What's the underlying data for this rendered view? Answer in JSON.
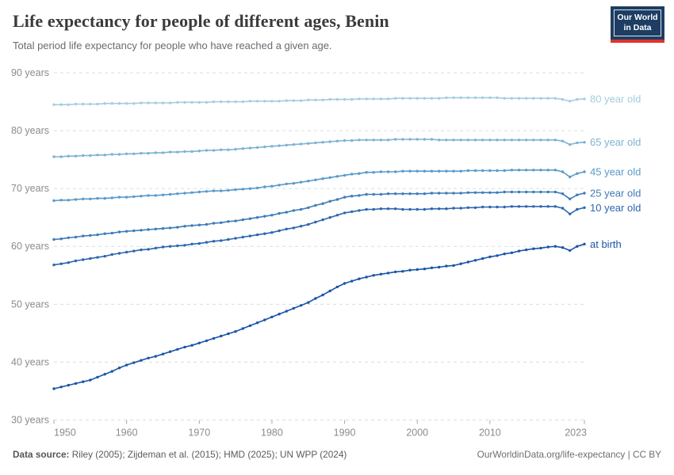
{
  "header": {
    "title": "Life expectancy for people of different ages, Benin",
    "subtitle": "Total period life expectancy for people who have reached a given age.",
    "logo": {
      "line1": "Our World",
      "line2": "in Data",
      "bg": "#1d3d63",
      "stripe": "#e0332e"
    }
  },
  "footer": {
    "datasource_label": "Data source:",
    "datasource_text": " Riley (2005); Zijdeman et al. (2015); HMD (2025); UN WPP (2024)",
    "license_text": "OurWorldinData.org/life-expectancy | CC BY"
  },
  "colors": {
    "grid": "#dcdcdc",
    "tick": "#a8a8a8",
    "axis_text": "#8b8b8b",
    "title_text": "#3b3b3b",
    "subtitle_text": "#666b70"
  },
  "chart_data": {
    "type": "line",
    "title": "Life expectancy for people of different ages, Benin",
    "subtitle": "Total period life expectancy for people who have reached a given age.",
    "xlim": [
      1950,
      2023
    ],
    "ylim": [
      30,
      90
    ],
    "yticks": [
      30,
      40,
      50,
      60,
      70,
      80,
      90
    ],
    "ytick_suffix": " years",
    "xticks": [
      1950,
      1960,
      1970,
      1980,
      1990,
      2000,
      2010,
      2023
    ],
    "grid": "dashed-horizontal",
    "legend_position": "right-end-labels",
    "x": [
      1950,
      1951,
      1952,
      1953,
      1954,
      1955,
      1956,
      1957,
      1958,
      1959,
      1960,
      1961,
      1962,
      1963,
      1964,
      1965,
      1966,
      1967,
      1968,
      1969,
      1970,
      1971,
      1972,
      1973,
      1974,
      1975,
      1976,
      1977,
      1978,
      1979,
      1980,
      1981,
      1982,
      1983,
      1984,
      1985,
      1986,
      1987,
      1988,
      1989,
      1990,
      1991,
      1992,
      1993,
      1994,
      1995,
      1996,
      1997,
      1998,
      1999,
      2000,
      2001,
      2002,
      2003,
      2004,
      2005,
      2006,
      2007,
      2008,
      2009,
      2010,
      2011,
      2012,
      2013,
      2014,
      2015,
      2016,
      2017,
      2018,
      2019,
      2020,
      2021,
      2022,
      2023
    ],
    "series": [
      {
        "name": "eighty",
        "label": "80 year old",
        "color": "#a5cddf",
        "values": [
          84.5,
          84.5,
          84.5,
          84.6,
          84.6,
          84.6,
          84.6,
          84.7,
          84.7,
          84.7,
          84.7,
          84.7,
          84.8,
          84.8,
          84.8,
          84.8,
          84.8,
          84.9,
          84.9,
          84.9,
          84.9,
          84.9,
          85.0,
          85.0,
          85.0,
          85.0,
          85.0,
          85.1,
          85.1,
          85.1,
          85.1,
          85.1,
          85.2,
          85.2,
          85.2,
          85.3,
          85.3,
          85.3,
          85.4,
          85.4,
          85.4,
          85.4,
          85.5,
          85.5,
          85.5,
          85.5,
          85.5,
          85.6,
          85.6,
          85.6,
          85.6,
          85.6,
          85.6,
          85.6,
          85.7,
          85.7,
          85.7,
          85.7,
          85.7,
          85.7,
          85.7,
          85.7,
          85.6,
          85.6,
          85.6,
          85.6,
          85.6,
          85.6,
          85.6,
          85.6,
          85.4,
          85.1,
          85.4,
          85.5
        ]
      },
      {
        "name": "sixtyfive",
        "label": "65 year old",
        "color": "#7eb2d3",
        "values": [
          75.5,
          75.5,
          75.6,
          75.6,
          75.7,
          75.7,
          75.8,
          75.8,
          75.9,
          75.9,
          76.0,
          76.0,
          76.1,
          76.1,
          76.2,
          76.2,
          76.3,
          76.3,
          76.4,
          76.4,
          76.5,
          76.6,
          76.6,
          76.7,
          76.7,
          76.8,
          76.9,
          77.0,
          77.1,
          77.2,
          77.3,
          77.4,
          77.5,
          77.6,
          77.7,
          77.8,
          77.9,
          78.0,
          78.1,
          78.2,
          78.3,
          78.3,
          78.4,
          78.4,
          78.4,
          78.4,
          78.4,
          78.5,
          78.5,
          78.5,
          78.5,
          78.5,
          78.5,
          78.4,
          78.4,
          78.4,
          78.4,
          78.4,
          78.4,
          78.4,
          78.4,
          78.4,
          78.4,
          78.4,
          78.4,
          78.4,
          78.4,
          78.4,
          78.4,
          78.4,
          78.2,
          77.6,
          77.9,
          78.0
        ]
      },
      {
        "name": "fortyfive",
        "label": "45 year old",
        "color": "#5b9ac9",
        "values": [
          67.9,
          68.0,
          68.0,
          68.1,
          68.2,
          68.2,
          68.3,
          68.3,
          68.4,
          68.5,
          68.5,
          68.6,
          68.7,
          68.8,
          68.8,
          68.9,
          69.0,
          69.1,
          69.2,
          69.3,
          69.4,
          69.5,
          69.6,
          69.6,
          69.7,
          69.8,
          69.9,
          70.0,
          70.1,
          70.3,
          70.4,
          70.6,
          70.8,
          70.9,
          71.1,
          71.3,
          71.5,
          71.7,
          71.9,
          72.1,
          72.3,
          72.5,
          72.6,
          72.8,
          72.8,
          72.9,
          72.9,
          72.9,
          73.0,
          73.0,
          73.0,
          73.0,
          73.0,
          73.0,
          73.0,
          73.0,
          73.0,
          73.1,
          73.1,
          73.1,
          73.1,
          73.1,
          73.1,
          73.2,
          73.2,
          73.2,
          73.2,
          73.2,
          73.2,
          73.2,
          72.9,
          72.0,
          72.6,
          72.9
        ]
      },
      {
        "name": "twentyfive",
        "label": "25 year old",
        "color": "#3e7cb8",
        "values": [
          61.2,
          61.3,
          61.5,
          61.6,
          61.8,
          61.9,
          62.0,
          62.2,
          62.3,
          62.5,
          62.6,
          62.7,
          62.8,
          62.9,
          63.0,
          63.1,
          63.2,
          63.3,
          63.5,
          63.6,
          63.7,
          63.8,
          64.0,
          64.1,
          64.3,
          64.4,
          64.6,
          64.8,
          65.0,
          65.2,
          65.4,
          65.7,
          65.9,
          66.2,
          66.4,
          66.7,
          67.1,
          67.4,
          67.8,
          68.1,
          68.5,
          68.7,
          68.8,
          69.0,
          69.0,
          69.0,
          69.1,
          69.1,
          69.1,
          69.1,
          69.1,
          69.1,
          69.2,
          69.2,
          69.2,
          69.2,
          69.2,
          69.3,
          69.3,
          69.3,
          69.3,
          69.3,
          69.4,
          69.4,
          69.4,
          69.4,
          69.4,
          69.4,
          69.4,
          69.4,
          69.1,
          68.2,
          68.9,
          69.2
        ]
      },
      {
        "name": "ten",
        "label": "10 year old",
        "color": "#2d66ad",
        "values": [
          56.8,
          57.0,
          57.2,
          57.5,
          57.7,
          57.9,
          58.1,
          58.3,
          58.6,
          58.8,
          59.0,
          59.2,
          59.4,
          59.5,
          59.7,
          59.9,
          60.0,
          60.1,
          60.2,
          60.4,
          60.5,
          60.7,
          60.9,
          61.0,
          61.2,
          61.4,
          61.6,
          61.8,
          62.0,
          62.2,
          62.4,
          62.7,
          63.0,
          63.2,
          63.5,
          63.8,
          64.2,
          64.6,
          65.0,
          65.4,
          65.8,
          66.0,
          66.2,
          66.4,
          66.4,
          66.5,
          66.5,
          66.5,
          66.4,
          66.4,
          66.4,
          66.4,
          66.5,
          66.5,
          66.5,
          66.6,
          66.6,
          66.7,
          66.7,
          66.8,
          66.8,
          66.8,
          66.8,
          66.9,
          66.9,
          66.9,
          66.9,
          66.9,
          66.9,
          66.9,
          66.6,
          65.6,
          66.4,
          66.7
        ]
      },
      {
        "name": "at_birth",
        "label": "at birth",
        "color": "#1a55a8",
        "values": [
          35.4,
          35.7,
          36.0,
          36.3,
          36.6,
          36.9,
          37.4,
          37.9,
          38.4,
          39.0,
          39.5,
          39.9,
          40.3,
          40.7,
          41.0,
          41.4,
          41.8,
          42.2,
          42.6,
          42.9,
          43.3,
          43.7,
          44.1,
          44.5,
          44.9,
          45.3,
          45.8,
          46.3,
          46.8,
          47.3,
          47.8,
          48.3,
          48.8,
          49.3,
          49.8,
          50.3,
          51.0,
          51.6,
          52.3,
          53.0,
          53.6,
          54.0,
          54.4,
          54.7,
          55.0,
          55.2,
          55.4,
          55.6,
          55.7,
          55.9,
          56.0,
          56.1,
          56.3,
          56.4,
          56.6,
          56.7,
          57.0,
          57.3,
          57.6,
          57.9,
          58.2,
          58.4,
          58.7,
          58.9,
          59.2,
          59.4,
          59.6,
          59.7,
          59.9,
          60.0,
          59.8,
          59.3,
          60.0,
          60.4
        ]
      }
    ]
  }
}
